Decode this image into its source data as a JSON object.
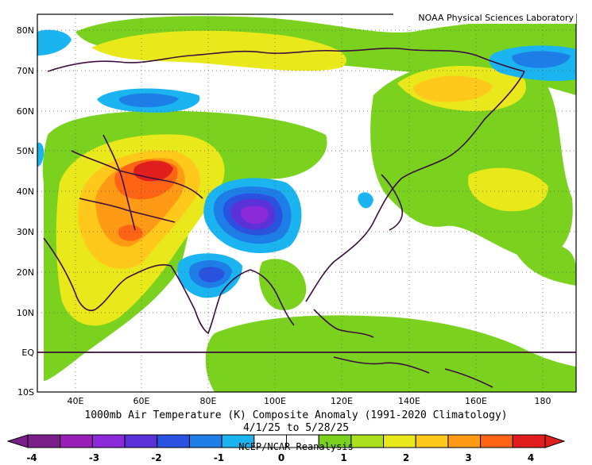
{
  "credit": "NOAA Physical Sciences Laboratory",
  "title": "1000mb Air Temperature (K) Composite Anomaly (1991-2020 Climatology)",
  "date_range": "4/1/25  to 5/28/25",
  "source": "NCEP/NCAR Reanalysis",
  "lat_labels": [
    "80N",
    "70N",
    "60N",
    "50N",
    "40N",
    "30N",
    "20N",
    "10N",
    "EQ",
    "10S"
  ],
  "lon_labels": [
    "40E",
    "60E",
    "80E",
    "100E",
    "120E",
    "140E",
    "160E",
    "180"
  ],
  "colorbar": {
    "tick_labels": [
      "-4",
      "-3",
      "-2",
      "-1",
      "0",
      "1",
      "2",
      "3",
      "4"
    ],
    "colors": [
      "#7a1f8a",
      "#9a1fb8",
      "#8a2ad8",
      "#5a32d8",
      "#2a52e0",
      "#1e7ee8",
      "#1ab4f0",
      "#ffffff",
      "#ffffff",
      "#7ad21e",
      "#a8e01e",
      "#e8e81a",
      "#ffc81a",
      "#ff9a14",
      "#ff6414",
      "#e01e1e"
    ]
  },
  "colors": {
    "neg4": "#7a1f8a",
    "neg3": "#9a1fb8",
    "neg25": "#8a2ad8",
    "neg2": "#5a32d8",
    "neg15": "#2a52e0",
    "neg1": "#1e7ee8",
    "neg05": "#1ab4f0",
    "zero": "#ffffff",
    "pos05": "#7ad21e",
    "pos1": "#a8e01e",
    "pos15": "#e8e81a",
    "pos2": "#ffc81a",
    "pos25": "#ff9a14",
    "pos3": "#ff6414",
    "pos4": "#e01e1e",
    "border": "#3c0f3c"
  }
}
